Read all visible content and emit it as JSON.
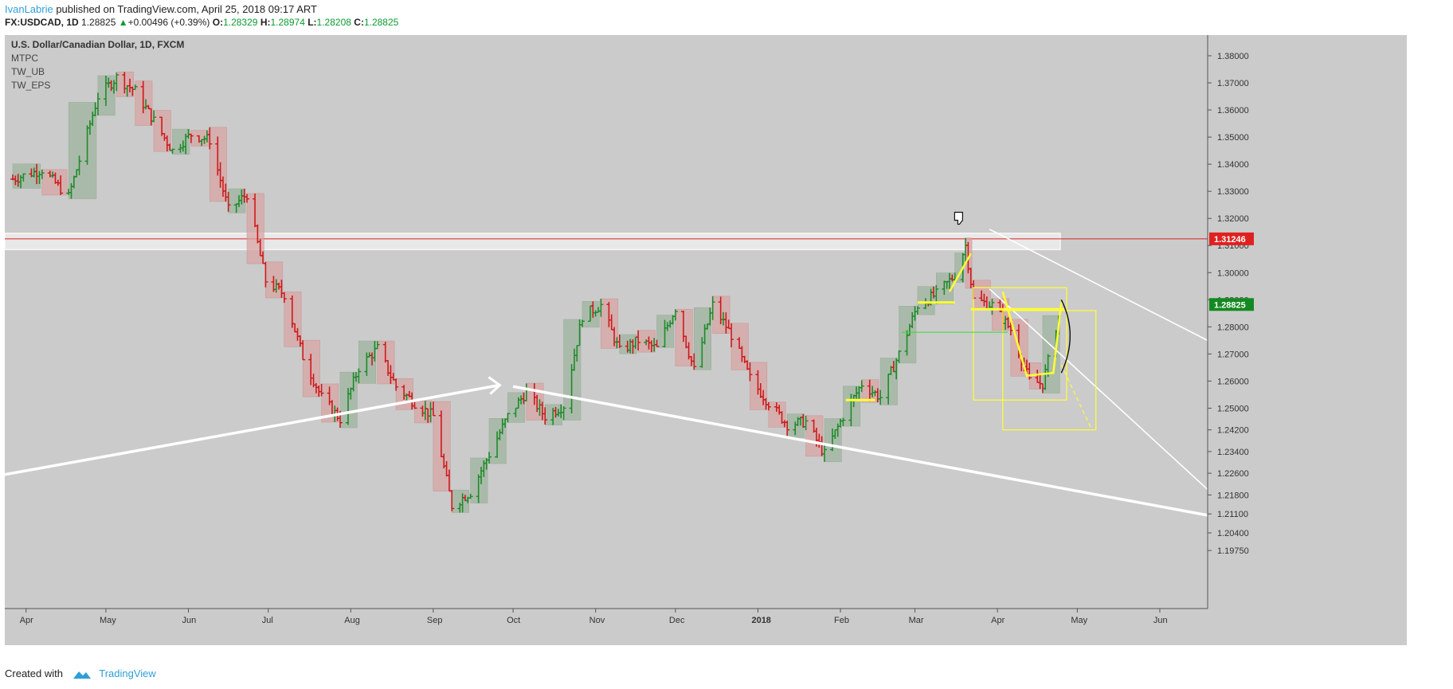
{
  "header": {
    "author": "IvanLabrie",
    "published_text": " published on TradingView.com, April 25, 2018 09:17 ART",
    "symbol": "FX:USDCAD, 1D",
    "last": "1.28825",
    "change": "+0.00496 (+0.39%)",
    "o_label": "O:",
    "o_value": "1.28329",
    "h_label": "H:",
    "h_value": "1.28974",
    "l_label": "L:",
    "l_value": "1.28208",
    "c_label": "C:",
    "c_value": "1.28825"
  },
  "legend": {
    "title": "U.S. Dollar/Canadian Dollar, 1D, FXCM",
    "studies": [
      "MTPC",
      "TW_UB",
      "TW_EPS"
    ]
  },
  "footer": {
    "created_with": "Created with",
    "brand": "TradingView"
  },
  "colors": {
    "up": "#1e8a2a",
    "down": "#cc1a1a",
    "neutral": "#222222",
    "bg": "#cbcbcb",
    "resistance": "#e02020",
    "current_price": "#138a21",
    "annotation_yellow": "#ffff33",
    "trendline": "#ffffff"
  },
  "chart_data": {
    "type": "ohlc",
    "title": "U.S. Dollar/Canadian Dollar, 1D, FXCM",
    "y_ticks": [
      "1.38000",
      "1.37000",
      "1.36000",
      "1.35000",
      "1.34000",
      "1.33000",
      "1.32000",
      "1.31000",
      "1.30000",
      "1.29000",
      "1.28000",
      "1.27000",
      "1.26000",
      "1.25000",
      "1.24200",
      "1.23400",
      "1.22600",
      "1.21800",
      "1.21100",
      "1.20400",
      "1.19750"
    ],
    "x_labels": [
      "Apr",
      "May",
      "Jun",
      "Jul",
      "Aug",
      "Sep",
      "Oct",
      "Nov",
      "Dec",
      "2018",
      "Feb",
      "Mar",
      "Apr",
      "May",
      "Jun"
    ],
    "price_labels": [
      {
        "text": "1.31246",
        "value": 1.31246,
        "kind": "resistance"
      },
      {
        "text": "1.28825",
        "value": 1.28825,
        "kind": "last"
      }
    ],
    "icon": "thumbs-down-icon",
    "anchors": [
      {
        "date": "2017-03-27",
        "close": 1.3345
      },
      {
        "date": "2017-04-07",
        "close": 1.338
      },
      {
        "date": "2017-04-17",
        "close": 1.328
      },
      {
        "date": "2017-04-28",
        "close": 1.365
      },
      {
        "date": "2017-05-05",
        "close": 1.372
      },
      {
        "date": "2017-05-12",
        "close": 1.367
      },
      {
        "date": "2017-05-19",
        "close": 1.356
      },
      {
        "date": "2017-05-26",
        "close": 1.345
      },
      {
        "date": "2017-06-02",
        "close": 1.351
      },
      {
        "date": "2017-06-09",
        "close": 1.349
      },
      {
        "date": "2017-06-16",
        "close": 1.323
      },
      {
        "date": "2017-06-23",
        "close": 1.329
      },
      {
        "date": "2017-06-30",
        "close": 1.297
      },
      {
        "date": "2017-07-07",
        "close": 1.292
      },
      {
        "date": "2017-07-14",
        "close": 1.269
      },
      {
        "date": "2017-07-21",
        "close": 1.254
      },
      {
        "date": "2017-07-28",
        "close": 1.246
      },
      {
        "date": "2017-08-04",
        "close": 1.265
      },
      {
        "date": "2017-08-11",
        "close": 1.272
      },
      {
        "date": "2017-08-18",
        "close": 1.258
      },
      {
        "date": "2017-08-25",
        "close": 1.252
      },
      {
        "date": "2017-09-01",
        "close": 1.247
      },
      {
        "date": "2017-09-08",
        "close": 1.214
      },
      {
        "date": "2017-09-15",
        "close": 1.219
      },
      {
        "date": "2017-09-22",
        "close": 1.233
      },
      {
        "date": "2017-09-29",
        "close": 1.247
      },
      {
        "date": "2017-10-06",
        "close": 1.256
      },
      {
        "date": "2017-10-13",
        "close": 1.247
      },
      {
        "date": "2017-10-20",
        "close": 1.251
      },
      {
        "date": "2017-10-27",
        "close": 1.284
      },
      {
        "date": "2017-11-03",
        "close": 1.288
      },
      {
        "date": "2017-11-10",
        "close": 1.271
      },
      {
        "date": "2017-11-17",
        "close": 1.275
      },
      {
        "date": "2017-11-24",
        "close": 1.272
      },
      {
        "date": "2017-12-01",
        "close": 1.287
      },
      {
        "date": "2017-12-08",
        "close": 1.264
      },
      {
        "date": "2017-12-15",
        "close": 1.288
      },
      {
        "date": "2017-12-22",
        "close": 1.277
      },
      {
        "date": "2017-12-29",
        "close": 1.261
      },
      {
        "date": "2018-01-05",
        "close": 1.252
      },
      {
        "date": "2018-01-12",
        "close": 1.244
      },
      {
        "date": "2018-01-19",
        "close": 1.245
      },
      {
        "date": "2018-01-26",
        "close": 1.233
      },
      {
        "date": "2018-02-02",
        "close": 1.247
      },
      {
        "date": "2018-02-09",
        "close": 1.259
      },
      {
        "date": "2018-02-16",
        "close": 1.254
      },
      {
        "date": "2018-02-23",
        "close": 1.27
      },
      {
        "date": "2018-03-02",
        "close": 1.288
      },
      {
        "date": "2018-03-09",
        "close": 1.292
      },
      {
        "date": "2018-03-16",
        "close": 1.299
      },
      {
        "date": "2018-03-20",
        "close": 1.31
      },
      {
        "date": "2018-03-23",
        "close": 1.29
      },
      {
        "date": "2018-03-30",
        "close": 1.288
      },
      {
        "date": "2018-04-06",
        "close": 1.279
      },
      {
        "date": "2018-04-13",
        "close": 1.26
      },
      {
        "date": "2018-04-18",
        "close": 1.259
      },
      {
        "date": "2018-04-25",
        "close": 1.28825
      }
    ],
    "resistance_zone": {
      "top": 1.3145,
      "bottom": 1.3085
    },
    "last_price": 1.28825,
    "resistance_price": 1.31246
  }
}
